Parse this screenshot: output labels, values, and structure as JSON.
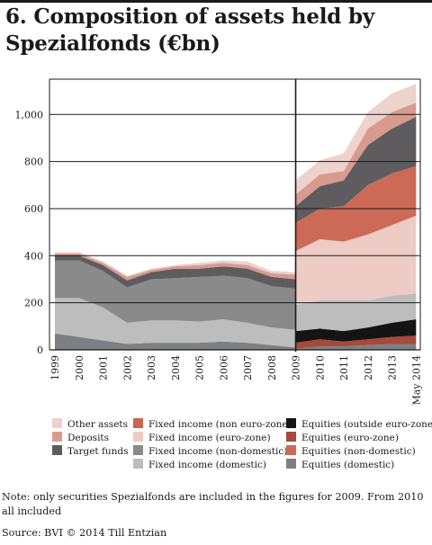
{
  "title": "6. Composition of assets held by Spezialfonds (€bn)",
  "note": "Note: only securities Spezialfonds are included in the figures for 2009. From 2010 all included",
  "source": "Source: BVI © 2014 Till Entzian",
  "chart_data": {
    "type": "area",
    "stacked": true,
    "title": "6. Composition of assets held by Spezialfonds (€bn)",
    "x": [
      "1999",
      "2000",
      "2001",
      "2002",
      "2003",
      "2004",
      "2005",
      "2006",
      "2007",
      "2008",
      "2009",
      "2010",
      "2011",
      "2012",
      "2013",
      "May 2014"
    ],
    "ylim": [
      0,
      1150
    ],
    "yticks": [
      0,
      200,
      400,
      600,
      800,
      1000
    ],
    "ytick_labels": [
      "0",
      "200",
      "400",
      "600",
      "800",
      "1,000"
    ],
    "grid": true,
    "legend_position": "bottom",
    "break_after_index": 10,
    "panels": [
      {
        "x_start_index": 0,
        "series": [
          {
            "name": "Equities (domestic)",
            "color": "#7d7f84",
            "values": [
              70,
              55,
              40,
              25,
              30,
              30,
              30,
              35,
              30,
              20,
              10
            ]
          },
          {
            "name": "Fixed income (domestic)",
            "color": "#bdbdbd",
            "values": [
              150,
              165,
              140,
              90,
              95,
              95,
              90,
              95,
              85,
              75,
              75
            ]
          },
          {
            "name": "Fixed income (non euro-zone)",
            "color": "#c86553",
            "values": [
              0,
              0,
              0,
              0,
              0,
              0,
              0,
              0,
              0,
              0,
              0
            ]
          },
          {
            "name": "Equities (non-domestic)",
            "color": "#cc6a57",
            "values": [
              0,
              0,
              0,
              0,
              0,
              0,
              0,
              0,
              0,
              0,
              0
            ]
          },
          {
            "name": "Fixed income (euro-zone)",
            "color": "#c35a48",
            "values": [
              0,
              0,
              0,
              0,
              0,
              0,
              0,
              0,
              0,
              0,
              0
            ]
          },
          {
            "name": "Fixed income (non-domestic)",
            "color": "#8a8a8a",
            "values": [
              160,
              160,
              155,
              150,
              175,
              180,
              190,
              185,
              190,
              175,
              175
            ]
          },
          {
            "name": "Target funds",
            "color": "#5e5c5e",
            "values": [
              20,
              20,
              25,
              30,
              30,
              40,
              35,
              40,
              40,
              40,
              40
            ]
          },
          {
            "name": "Deposits",
            "color": "#d89b8e",
            "values": [
              10,
              10,
              10,
              15,
              10,
              10,
              15,
              15,
              15,
              15,
              20
            ]
          },
          {
            "name": "Other assets",
            "color": "#ecd3cc",
            "values": [
              5,
              5,
              5,
              5,
              5,
              5,
              10,
              10,
              15,
              10,
              10
            ]
          }
        ]
      },
      {
        "x_start_index": 10,
        "series": [
          {
            "name": "Equities (domestic)",
            "color": "#7d7f84",
            "values": [
              5,
              15,
              15,
              20,
              25,
              25
            ]
          },
          {
            "name": "Equities (euro-zone)",
            "color": "#a64a3a",
            "values": [
              25,
              30,
              20,
              25,
              30,
              35
            ]
          },
          {
            "name": "Equities (outside euro-zone)",
            "color": "#141414",
            "values": [
              50,
              45,
              45,
              50,
              60,
              70
            ]
          },
          {
            "name": "Fixed income (domestic)",
            "color": "#bdbdbd",
            "values": [
              110,
              120,
              130,
              115,
              115,
              110
            ]
          },
          {
            "name": "Fixed income (euro-zone)",
            "color": "#ecccc5",
            "values": [
              230,
              260,
              250,
              280,
              300,
              330
            ]
          },
          {
            "name": "Equities (non-domestic)",
            "color": "#cc6a57",
            "values": [
              120,
              130,
              150,
              210,
              220,
              210
            ]
          },
          {
            "name": "Target funds",
            "color": "#5e5c5e",
            "values": [
              70,
              95,
              110,
              170,
              190,
              210
            ]
          },
          {
            "name": "Deposits",
            "color": "#d89b8e",
            "values": [
              50,
              50,
              40,
              70,
              70,
              60
            ]
          },
          {
            "name": "Other assets",
            "color": "#ecd3cc",
            "values": [
              60,
              60,
              75,
              70,
              80,
              80
            ]
          }
        ]
      }
    ]
  },
  "legend": [
    {
      "label": "Other assets",
      "color": "#ecd3cc"
    },
    {
      "label": "Deposits",
      "color": "#d89b8e"
    },
    {
      "label": "Target funds",
      "color": "#5e5c5e"
    },
    {
      "label": "Fixed income (non euro-zone)",
      "color": "#c86553"
    },
    {
      "label": "Fixed income (euro-zone)",
      "color": "#ecccc5"
    },
    {
      "label": "Fixed income (non-domestic)",
      "color": "#8a8a8a"
    },
    {
      "label": "Fixed income (domestic)",
      "color": "#bdbdbd"
    },
    {
      "label": "Equities (outside euro-zone)",
      "color": "#141414"
    },
    {
      "label": "Equities (euro-zone)",
      "color": "#a64a3a"
    },
    {
      "label": "Equities (non-domestic)",
      "color": "#cc6a57"
    },
    {
      "label": "Equities (domestic)",
      "color": "#7d7f84"
    }
  ]
}
